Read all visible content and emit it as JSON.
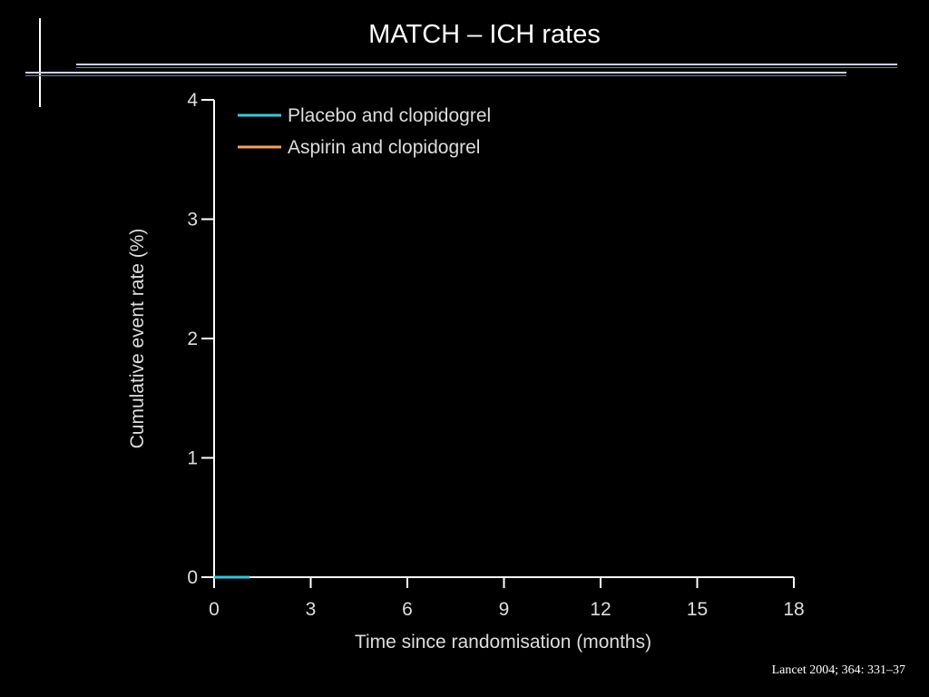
{
  "slide": {
    "title": "MATCH – ICH rates",
    "citation": "Lancet 2004; 364: 331–37"
  },
  "colors": {
    "background": "#000000",
    "axis": "#ffffff",
    "text": "#dddddd",
    "decor_line": "#c9d3ea",
    "decor_line_dark": "#6b7fb8"
  },
  "chart_data": {
    "type": "line",
    "title": "",
    "xlabel": "Time since randomisation (months)",
    "ylabel": "Cumulative event rate (%)",
    "xlim": [
      0,
      18
    ],
    "ylim": [
      0,
      4
    ],
    "xticks": [
      0,
      3,
      6,
      9,
      12,
      15,
      18
    ],
    "yticks": [
      0,
      1,
      2,
      3,
      4
    ],
    "grid": false,
    "legend_position": "top-left",
    "series": [
      {
        "name": "Placebo and clopidogrel",
        "color": "#3ec3d6",
        "x": [
          0,
          1.1
        ],
        "y": [
          0,
          0
        ]
      },
      {
        "name": "Aspirin and clopidogrel",
        "color": "#f4a261",
        "x": [],
        "y": []
      }
    ]
  }
}
